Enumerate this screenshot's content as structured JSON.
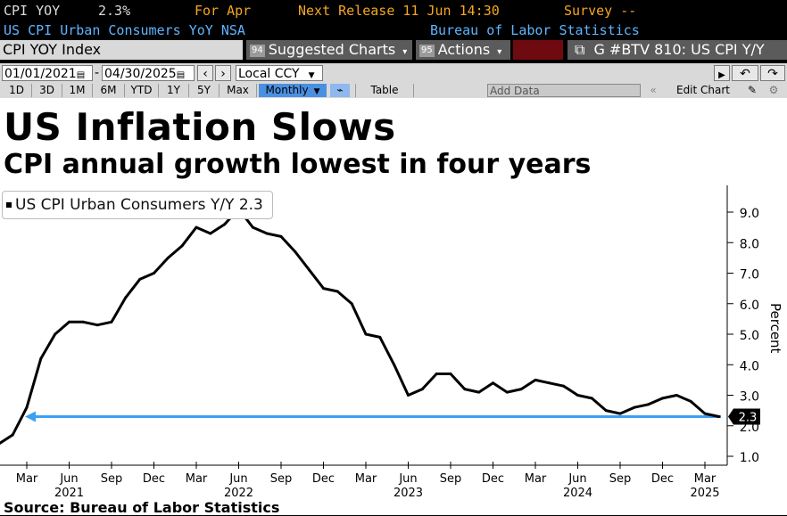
{
  "header": {
    "ticker": "CPI YOY",
    "value": "2.3%",
    "period": "For Apr",
    "next_release": "Next Release 11 Jun 14:30",
    "survey": "Survey --",
    "description": "US CPI Urban Consumers YoY NSA",
    "source_agency": "Bureau of Labor Statistics"
  },
  "toolbar": {
    "security": "CPI YOY Index",
    "suggested_tag": "94",
    "suggested": "Suggested Charts",
    "actions_tag": "95",
    "actions": "Actions",
    "export_code": "G #BTV 810: US CPI Y/Y"
  },
  "range": {
    "start_date": "01/01/2021",
    "end_date": "04/30/2025",
    "currency": "Local CCY"
  },
  "periods": [
    "1D",
    "3D",
    "1M",
    "6M",
    "YTD",
    "1Y",
    "5Y",
    "Max"
  ],
  "frequency": "Monthly",
  "table_label": "Table",
  "add_data_placeholder": "Add Data",
  "edit_chart": "Edit Chart",
  "chart_title": "US Inflation Slows",
  "chart_subtitle": "CPI annual growth lowest in four years",
  "source_note": "Source: Bureau of Labor Statistics",
  "colors": {
    "line": "#000000",
    "reference": "#3aa0f5",
    "brand_orange": "#f5a623"
  },
  "chart_data": {
    "type": "line",
    "ylabel": "Percent",
    "ylim": [
      1.0,
      9.4
    ],
    "yticks": [
      1.0,
      2.0,
      3.0,
      4.0,
      5.0,
      6.0,
      7.0,
      8.0,
      9.0
    ],
    "ytick_labels": [
      "1.0",
      "2.0",
      "3.0",
      "4.0",
      "5.0",
      "6.0",
      "7.0",
      "8.0",
      "9.0"
    ],
    "x_month_labels": [
      "Mar",
      "Jun",
      "Sep",
      "Dec",
      "Mar",
      "Jun",
      "Sep",
      "Dec",
      "Mar",
      "Jun",
      "Sep",
      "Dec",
      "Mar",
      "Jun",
      "Sep",
      "Dec",
      "Mar"
    ],
    "x_year_labels": [
      "2021",
      "2022",
      "2023",
      "2024",
      "2025"
    ],
    "legend": "US CPI Urban Consumers Y/Y 2.3",
    "last_value_label": "2.3",
    "reference_line": 2.3,
    "series": [
      {
        "name": "US CPI Urban Consumers Y/Y",
        "x": [
          "2021-01",
          "2021-02",
          "2021-03",
          "2021-04",
          "2021-05",
          "2021-06",
          "2021-07",
          "2021-08",
          "2021-09",
          "2021-10",
          "2021-11",
          "2021-12",
          "2022-01",
          "2022-02",
          "2022-03",
          "2022-04",
          "2022-05",
          "2022-06",
          "2022-07",
          "2022-08",
          "2022-09",
          "2022-10",
          "2022-11",
          "2022-12",
          "2023-01",
          "2023-02",
          "2023-03",
          "2023-04",
          "2023-05",
          "2023-06",
          "2023-07",
          "2023-08",
          "2023-09",
          "2023-10",
          "2023-11",
          "2023-12",
          "2024-01",
          "2024-02",
          "2024-03",
          "2024-04",
          "2024-05",
          "2024-06",
          "2024-07",
          "2024-08",
          "2024-09",
          "2024-10",
          "2024-11",
          "2024-12",
          "2025-01",
          "2025-02",
          "2025-03",
          "2025-04"
        ],
        "values": [
          1.4,
          1.7,
          2.6,
          4.2,
          5.0,
          5.4,
          5.4,
          5.3,
          5.4,
          6.2,
          6.8,
          7.0,
          7.5,
          7.9,
          8.5,
          8.3,
          8.6,
          9.1,
          8.5,
          8.3,
          8.2,
          7.7,
          7.1,
          6.5,
          6.4,
          6.0,
          5.0,
          4.9,
          4.0,
          3.0,
          3.2,
          3.7,
          3.7,
          3.2,
          3.1,
          3.4,
          3.1,
          3.2,
          3.5,
          3.4,
          3.3,
          3.0,
          2.9,
          2.5,
          2.4,
          2.6,
          2.7,
          2.9,
          3.0,
          2.8,
          2.4,
          2.3
        ]
      }
    ]
  }
}
